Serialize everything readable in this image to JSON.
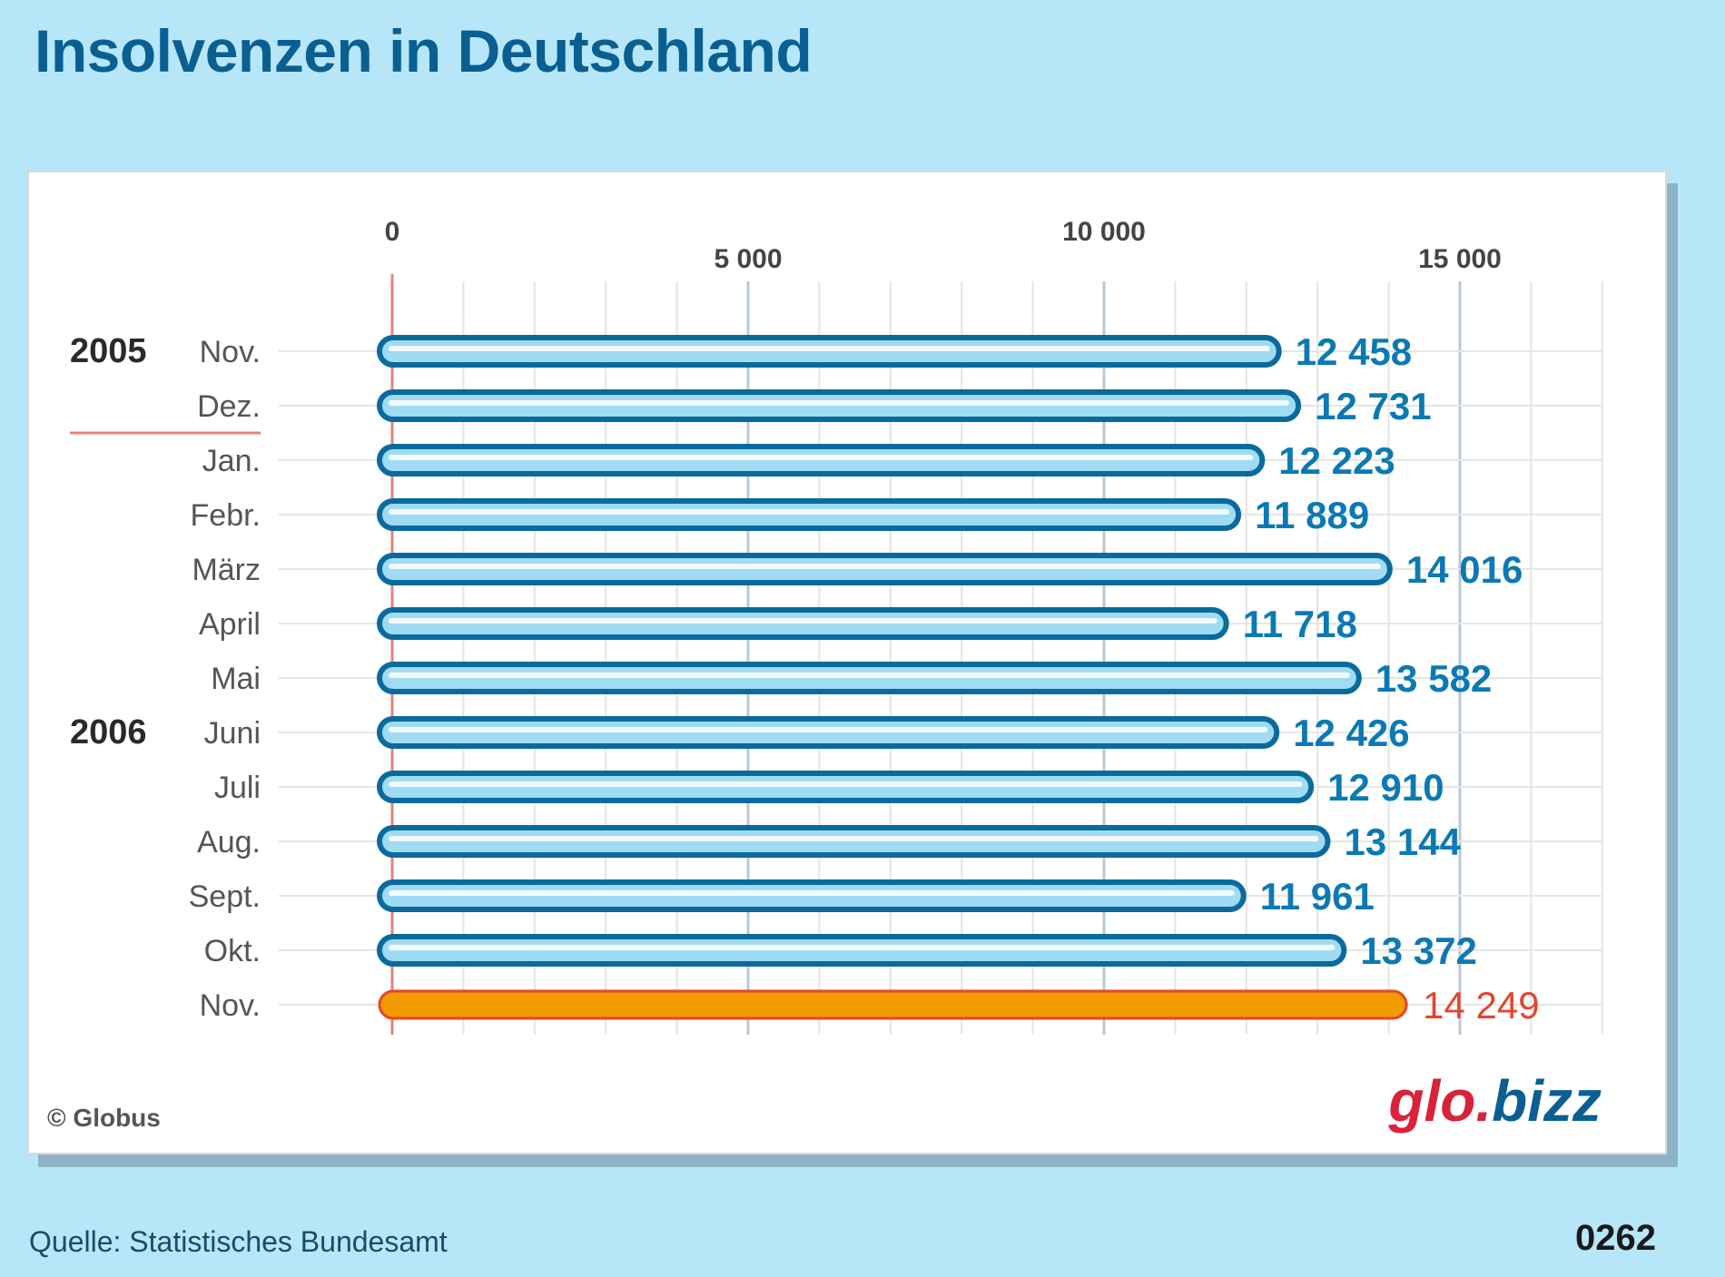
{
  "title": "Insolvenzen in Deutschland",
  "chart_data": {
    "type": "bar",
    "orientation": "horizontal",
    "title": "Insolvenzen in Deutschland",
    "categories": [
      "Nov.",
      "Dez.",
      "Jan.",
      "Febr.",
      "März",
      "April",
      "Mai",
      "Juni",
      "Juli",
      "Aug.",
      "Sept.",
      "Okt.",
      "Nov."
    ],
    "values": [
      12458,
      12731,
      12223,
      11889,
      14016,
      11718,
      13582,
      12426,
      12910,
      13144,
      11961,
      13372,
      14249
    ],
    "value_labels": [
      "12 458",
      "12 731",
      "12 223",
      "11 889",
      "14 016",
      "11 718",
      "13 582",
      "12 426",
      "12 910",
      "13 144",
      "11 961",
      "13 372",
      "14 249"
    ],
    "year_groups": [
      {
        "label": "2005",
        "row": 0
      },
      {
        "label": "2006",
        "row": 7
      }
    ],
    "year_divider_after_row": 1,
    "highlight_index": 12,
    "xlim": [
      0,
      17000
    ],
    "xticks": [
      0,
      5000,
      10000,
      15000
    ],
    "xtick_labels": [
      "0",
      "5 000",
      "10 000",
      "15 000"
    ],
    "xlabel": "",
    "ylabel": "",
    "grid": true,
    "colors": {
      "bar_outline": "#0b6a9d",
      "bar_fill": "#9fdcf4",
      "bar_highlight": "#f29a00",
      "highlight_outline": "#e2462e",
      "value_label": "#0b79b3",
      "value_label_highlight": "#e2462e"
    }
  },
  "copyright": "© Globus",
  "logo": {
    "part1": "glo.",
    "part2": "bizz"
  },
  "source": "Quelle: Statistisches Bundesamt",
  "code": "0262"
}
